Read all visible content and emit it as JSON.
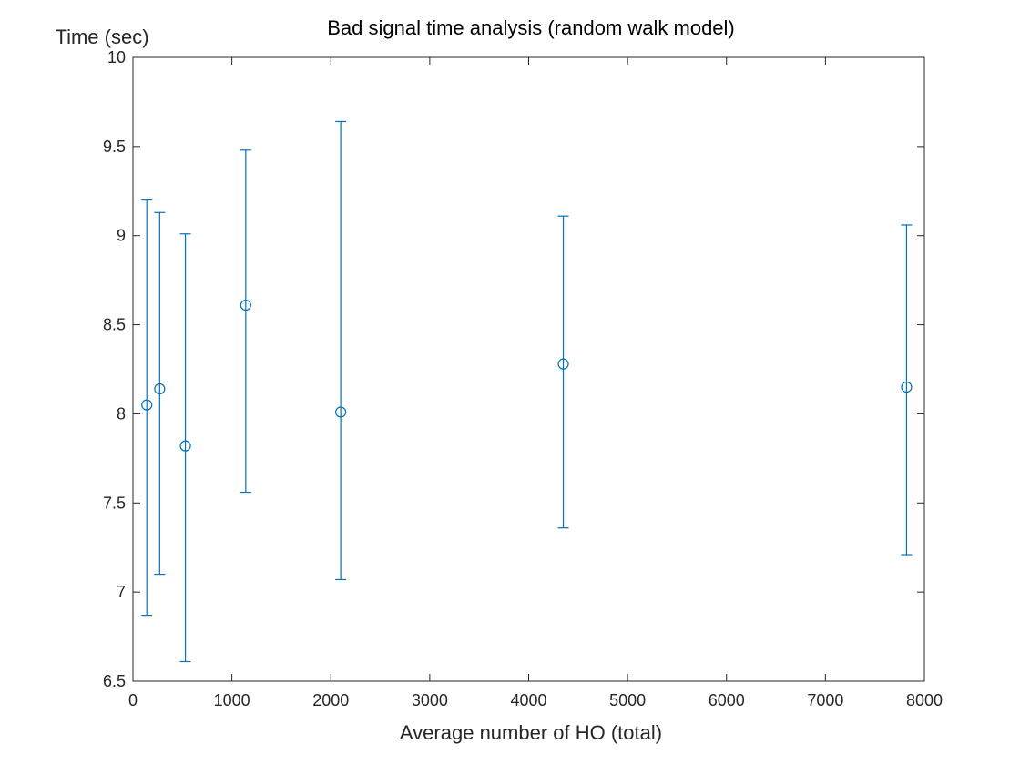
{
  "chart_data": {
    "type": "scatter",
    "title": "Bad signal time analysis (random walk model)",
    "xlabel": "Average number of HO (total)",
    "ylabel": "Time (sec)",
    "xlim": [
      0,
      8000
    ],
    "ylim": [
      6.5,
      10
    ],
    "x_ticks": [
      0,
      1000,
      2000,
      3000,
      4000,
      5000,
      6000,
      7000,
      8000
    ],
    "y_ticks": [
      6.5,
      7,
      7.5,
      8,
      8.5,
      9,
      9.5,
      10
    ],
    "x_tick_labels": [
      "0",
      "1000",
      "2000",
      "3000",
      "4000",
      "5000",
      "6000",
      "7000",
      "8000"
    ],
    "y_tick_labels": [
      "6.5",
      "7",
      "7.5",
      "8",
      "8.5",
      "9",
      "9.5",
      "10"
    ],
    "grid": false,
    "marker": "circle",
    "series_color": "#0072BD",
    "points": [
      {
        "x": 140,
        "y": 8.05,
        "lower": 6.87,
        "upper": 9.2
      },
      {
        "x": 270,
        "y": 8.14,
        "lower": 7.1,
        "upper": 9.13
      },
      {
        "x": 530,
        "y": 7.82,
        "lower": 6.61,
        "upper": 9.01
      },
      {
        "x": 1140,
        "y": 8.61,
        "lower": 7.56,
        "upper": 9.48
      },
      {
        "x": 2100,
        "y": 8.01,
        "lower": 7.07,
        "upper": 9.64
      },
      {
        "x": 4350,
        "y": 8.28,
        "lower": 7.36,
        "upper": 9.11
      },
      {
        "x": 7820,
        "y": 8.15,
        "lower": 7.21,
        "upper": 9.06
      }
    ]
  }
}
